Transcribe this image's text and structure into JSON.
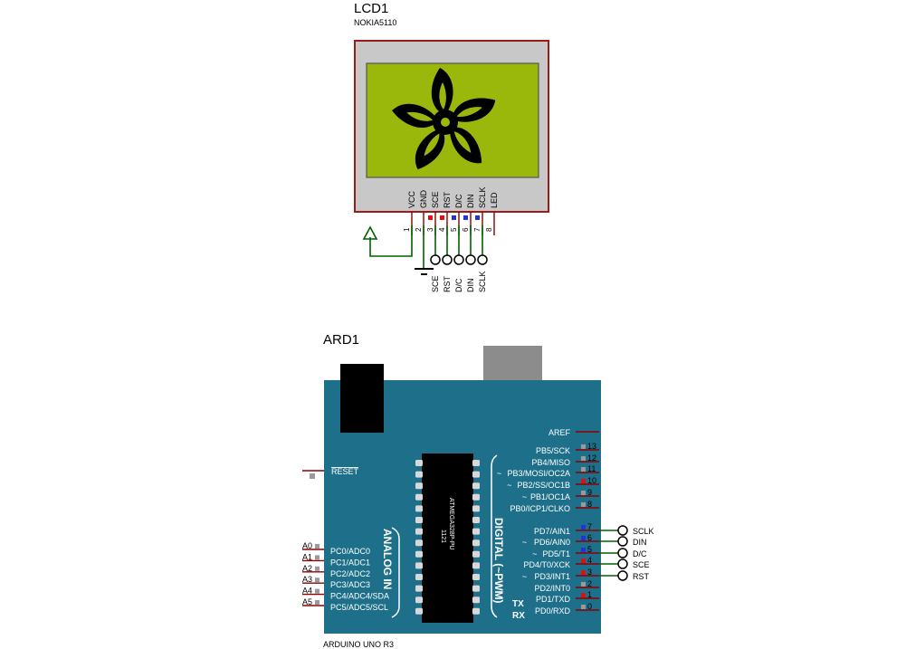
{
  "lcd": {
    "ref": "LCD1",
    "model": "NOKIA5110",
    "pin_labels": [
      "VCC",
      "GND",
      "SCE",
      "RST",
      "D/C",
      "DIN",
      "SCLK",
      "LED"
    ],
    "pin_numbers": [
      "1",
      "2",
      "3",
      "4",
      "5",
      "6",
      "7",
      "8"
    ],
    "net_labels": [
      "SCE",
      "RST",
      "D/C",
      "DIN",
      "SCLK"
    ],
    "screen_color": "#9ab80c",
    "bezel_color": "#c8c8c8",
    "frame_color": "#9b1b1b"
  },
  "arduino": {
    "ref": "ARD1",
    "model": "ARDUINO UNO R3",
    "board_color": "#1e6f8a",
    "chip_top": "1121",
    "chip_name": "ATMEGA328P-PU",
    "analog_title": "ANALOG IN",
    "digital_title": "DIGITAL (~PWM)",
    "aref": "AREF",
    "reset": "RESET",
    "analog_pins": [
      "A0",
      "A1",
      "A2",
      "A3",
      "A4",
      "A5"
    ],
    "analog_labels": [
      "PC0/ADC0",
      "PC1/ADC1",
      "PC2/ADC2",
      "PC3/ADC3",
      "PC4/ADC4/SDA",
      "PC5/ADC5/SCL"
    ],
    "digital_top_labels": [
      "PB5/SCK",
      "PB4/MISO",
      "PB3/MOSI/OC2A",
      "PB2/SS/OC1B",
      "PB1/OC1A",
      "PB0/ICP1/CLKO"
    ],
    "digital_top_numbers": [
      "13",
      "12",
      "11",
      "10",
      "9",
      "8"
    ],
    "digital_bottom_labels": [
      "PD7/AIN1",
      "PD6/AIN0",
      "PD5/T1",
      "PD4/T0/XCK",
      "PD3/INT1",
      "PD2/INT0",
      "PD1/TXD",
      "PD0/RXD"
    ],
    "digital_bottom_numbers": [
      "7",
      "6",
      "5",
      "4",
      "3",
      "2",
      "1",
      "0"
    ],
    "tx": "TX",
    "rx": "RX",
    "pwm_mark": "~",
    "net_labels": [
      "SCLK",
      "DIN",
      "D/C",
      "SCE",
      "RST"
    ]
  }
}
